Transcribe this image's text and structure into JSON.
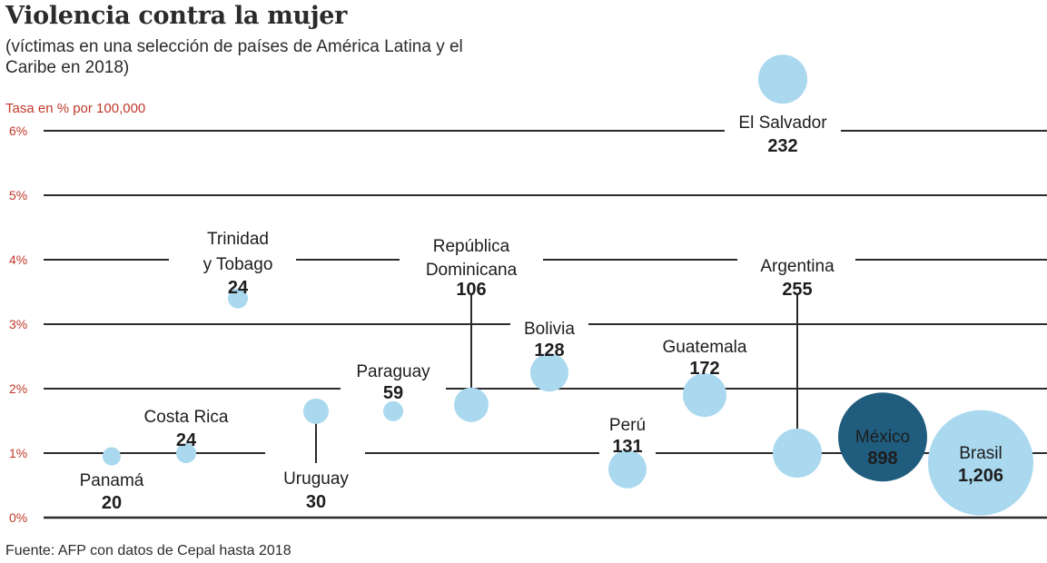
{
  "chart_data": {
    "type": "scatter",
    "title": "Violencia contra la mujer",
    "subtitle": "(víctimas en una selección de países de América Latina y el Caribe en 2018)",
    "ylabel": "Tasa en % por 100,000",
    "ylim": [
      0,
      6
    ],
    "yticks": [
      "0%",
      "1%",
      "2%",
      "3%",
      "4%",
      "5%",
      "6%"
    ],
    "grid": true,
    "colors": {
      "bubble": "#a9d8ef",
      "highlight": "#1f5c7d",
      "grid": "#2b2b2b",
      "axis_text": "#c0392b"
    },
    "points": [
      {
        "country": "Panamá",
        "victims": 20,
        "victims_label": "20",
        "rate": 0.95
      },
      {
        "country": "Costa Rica",
        "victims": 24,
        "victims_label": "24",
        "rate": 1.0
      },
      {
        "country": "Trinidad y Tobago",
        "victims": 24,
        "victims_label": "24",
        "rate": 3.4
      },
      {
        "country": "Uruguay",
        "victims": 30,
        "victims_label": "30",
        "rate": 1.65
      },
      {
        "country": "Paraguay",
        "victims": 59,
        "victims_label": "59",
        "rate": 1.65
      },
      {
        "country": "República Dominicana",
        "victims": 106,
        "victims_label": "106",
        "rate": 1.75
      },
      {
        "country": "Bolivia",
        "victims": 128,
        "victims_label": "128",
        "rate": 2.25
      },
      {
        "country": "Perú",
        "victims": 131,
        "victims_label": "131",
        "rate": 0.75
      },
      {
        "country": "Guatemala",
        "victims": 172,
        "victims_label": "172",
        "rate": 1.9
      },
      {
        "country": "Argentina",
        "victims": 255,
        "victims_label": "255",
        "rate": 1.0
      },
      {
        "country": "El Salvador",
        "victims": 232,
        "victims_label": "232",
        "rate": 6.8
      },
      {
        "country": "México",
        "victims": 898,
        "victims_label": "898",
        "rate": 1.25
      },
      {
        "country": "Brasil",
        "victims": 1206,
        "victims_label": "1,206",
        "rate": 0.85
      }
    ]
  },
  "footer": "Fuente: AFP con datos de Cepal hasta 2018"
}
